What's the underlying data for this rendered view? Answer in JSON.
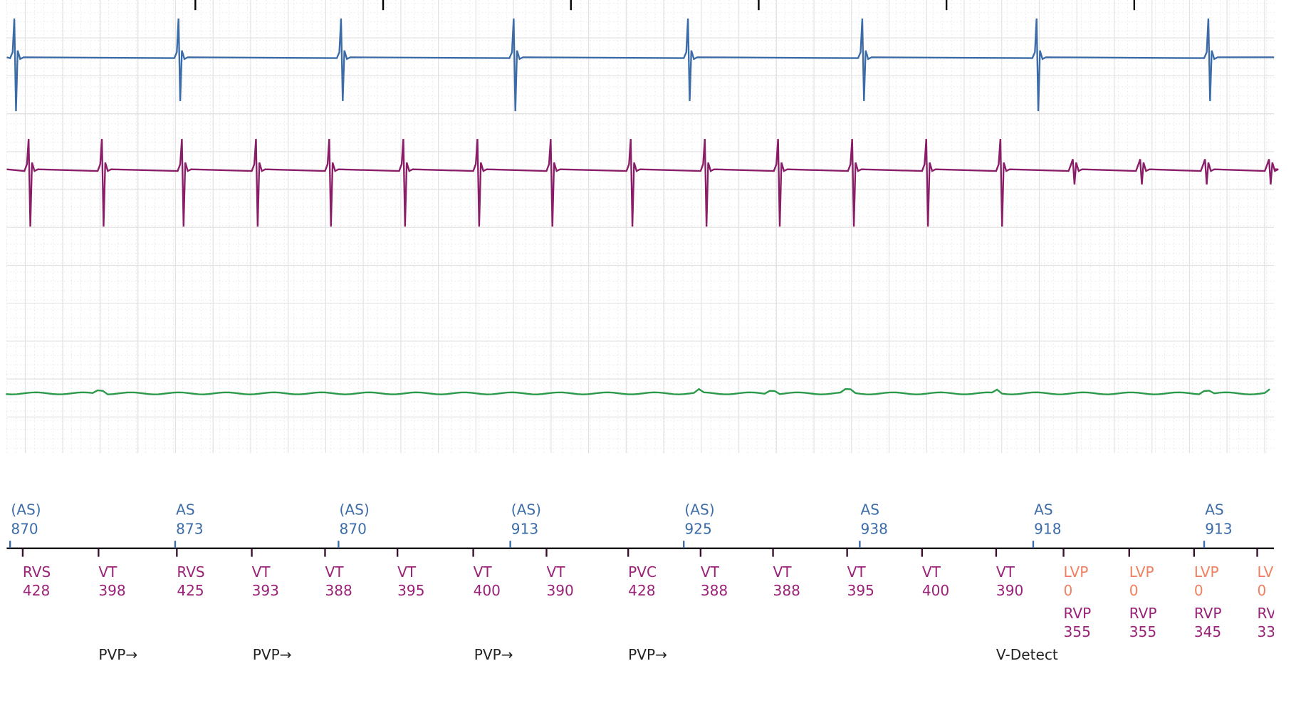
{
  "atrial_markers": [
    {
      "label": "(AS)",
      "interval": 870
    },
    {
      "label": "AS",
      "interval": 873
    },
    {
      "label": "(AS)",
      "interval": 870
    },
    {
      "label": "(AS)",
      "interval": 913
    },
    {
      "label": "(AS)",
      "interval": 925
    },
    {
      "label": "AS",
      "interval": 938
    },
    {
      "label": "AS",
      "interval": 918
    },
    {
      "label": "AS",
      "interval": 913
    }
  ],
  "ventricular_markers": [
    {
      "label": "RVS",
      "interval": 428
    },
    {
      "label": "VT",
      "interval": 398
    },
    {
      "label": "RVS",
      "interval": 425
    },
    {
      "label": "VT",
      "interval": 393
    },
    {
      "label": "VT",
      "interval": 388
    },
    {
      "label": "VT",
      "interval": 395
    },
    {
      "label": "VT",
      "interval": 400
    },
    {
      "label": "VT",
      "interval": 390
    },
    {
      "label": "PVC",
      "interval": 428
    },
    {
      "label": "VT",
      "interval": 388
    },
    {
      "label": "VT",
      "interval": 388
    },
    {
      "label": "VT",
      "interval": 395
    },
    {
      "label": "VT",
      "interval": 400
    },
    {
      "label": "VT",
      "interval": 390
    },
    {
      "label": "LVP",
      "interval": 0,
      "label2": "RVP",
      "interval2": 355
    },
    {
      "label": "LVP",
      "interval": 0,
      "label2": "RVP",
      "interval2": 355
    },
    {
      "label": "LVP",
      "interval": 0,
      "label2": "RVP",
      "interval2": 345
    },
    {
      "label": "LVP",
      "interval": 0,
      "label2": "RVP",
      "interval2": 33
    }
  ],
  "annotations": [
    "PVP→",
    "PVP→",
    "PVP→",
    "PVP→",
    "V-Detect"
  ]
}
